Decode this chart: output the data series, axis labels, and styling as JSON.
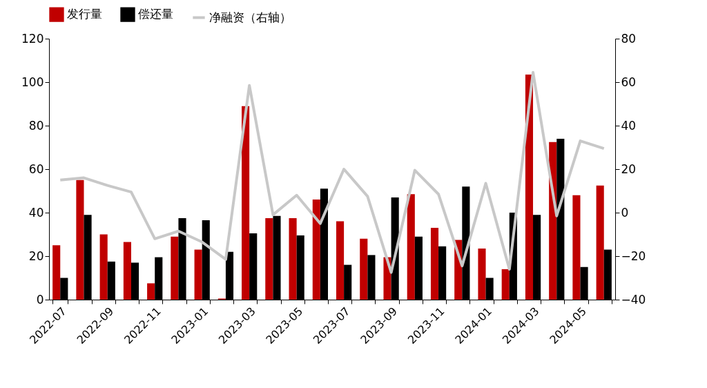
{
  "chart_data": {
    "type": "bar",
    "categories": [
      "2022-07",
      null,
      "2022-09",
      null,
      "2022-11",
      null,
      "2023-01",
      null,
      "2023-03",
      null,
      "2023-05",
      null,
      "2023-07",
      null,
      "2023-09",
      null,
      "2023-11",
      null,
      "2024-01",
      null,
      "2024-03",
      null,
      "2024-05",
      null
    ],
    "series": [
      {
        "name": "发行量",
        "color": "#c00000",
        "values": [
          25,
          55,
          30,
          26.5,
          7.5,
          29,
          23,
          0.5,
          89,
          37.5,
          37.5,
          46,
          36,
          28,
          19.5,
          48.5,
          33,
          27.5,
          23.5,
          14,
          103.5,
          72.5,
          48,
          52.5
        ]
      },
      {
        "name": "偿还量",
        "color": "#000000",
        "values": [
          10,
          39,
          17.5,
          17,
          19.5,
          37.5,
          36.5,
          22,
          30.5,
          38.5,
          29.5,
          51,
          16,
          20.5,
          47,
          29,
          24.5,
          52,
          10,
          40,
          39,
          74,
          15,
          23
        ]
      },
      {
        "name": "净融资（右轴）",
        "type": "line",
        "axis": "y2",
        "color": "#c8c8c8",
        "values": [
          15,
          16,
          12.5,
          9.5,
          -12,
          -8.5,
          -13.5,
          -21.5,
          58.5,
          -1,
          8,
          -5,
          20,
          7.5,
          -27.5,
          19.5,
          8.5,
          -24.5,
          13.5,
          -26,
          64.5,
          -1.5,
          33,
          29.5
        ]
      }
    ],
    "ylim": [
      0,
      120
    ],
    "yticks": [
      0,
      20,
      40,
      60,
      80,
      100,
      120
    ],
    "y2lim": [
      -40,
      80
    ],
    "y2ticks": [
      -40,
      -20,
      0,
      20,
      40,
      60,
      80
    ],
    "grid": false,
    "legend": "top",
    "marker": "none",
    "line_style": "solid"
  }
}
